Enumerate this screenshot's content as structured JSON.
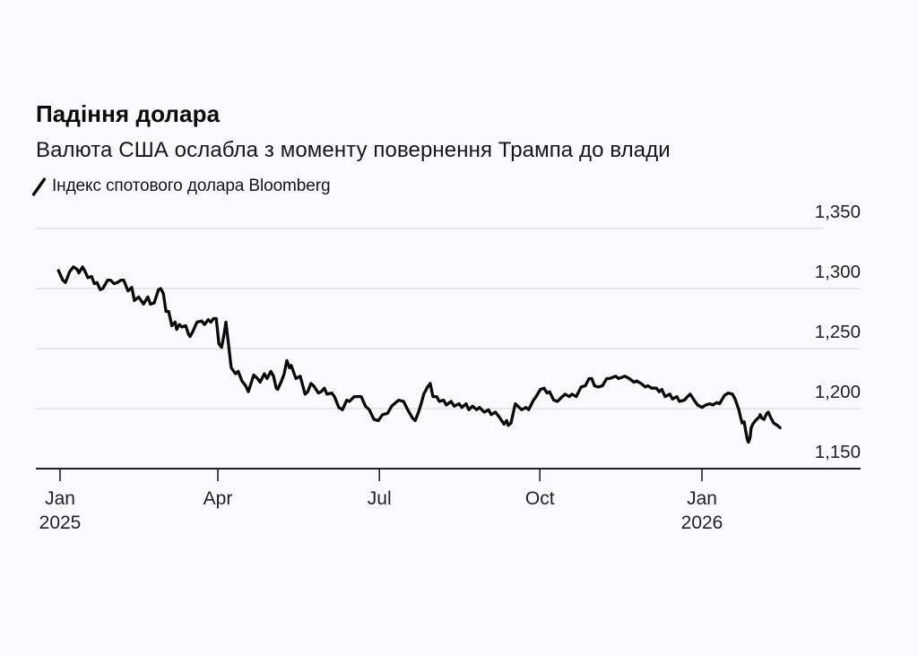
{
  "page": {
    "background": "#faf9fd"
  },
  "header": {
    "title": "Падіння долара",
    "subtitle": "Валюта США ослабла з моменту повернення Трампа до влади"
  },
  "legend": {
    "label": "Індекс спотового долара Bloomberg",
    "swatch_icon": "line-slash-icon",
    "swatch_color": "#0a0a0b"
  },
  "chart_data": {
    "type": "line",
    "title": "Падіння долара",
    "subtitle": "Валюта США ослабла з моменту повернення Трампа до влади",
    "grid": "horizontal",
    "legend_position": "top-left",
    "line_color": "#0a0a0b",
    "grid_color": "#dddce1",
    "axis_color": "#232127",
    "label_color": "#232127",
    "ylim": [
      1150,
      1350
    ],
    "xlim_months": [
      -0.45,
      14.97
    ],
    "x_unit": "months since Jan 2025",
    "y_ticks": [
      {
        "value": 1350,
        "label": "1,350"
      },
      {
        "value": 1300,
        "label": "1,300"
      },
      {
        "value": 1250,
        "label": "1,250"
      },
      {
        "value": 1200,
        "label": "1,200"
      },
      {
        "value": 1150,
        "label": "1,150"
      }
    ],
    "x_ticks": [
      {
        "t": 0,
        "label": "Jan",
        "sublabel": "2025"
      },
      {
        "t": 2.95,
        "label": "Apr",
        "sublabel": ""
      },
      {
        "t": 5.97,
        "label": "Jul",
        "sublabel": ""
      },
      {
        "t": 8.97,
        "label": "Oct",
        "sublabel": ""
      },
      {
        "t": 12.0,
        "label": "Jan",
        "sublabel": "2026"
      }
    ],
    "series": [
      {
        "name": "Індекс спотового долара Bloomberg",
        "color": "#0a0a0b",
        "points": [
          [
            -0.03,
            1315
          ],
          [
            0.05,
            1307
          ],
          [
            0.1,
            1305
          ],
          [
            0.18,
            1314
          ],
          [
            0.25,
            1318
          ],
          [
            0.32,
            1316
          ],
          [
            0.35,
            1313
          ],
          [
            0.42,
            1318
          ],
          [
            0.47,
            1314
          ],
          [
            0.52,
            1309
          ],
          [
            0.59,
            1310
          ],
          [
            0.64,
            1304
          ],
          [
            0.69,
            1305
          ],
          [
            0.75,
            1299
          ],
          [
            0.8,
            1300
          ],
          [
            0.89,
            1307
          ],
          [
            0.94,
            1307
          ],
          [
            1.01,
            1304
          ],
          [
            1.07,
            1305
          ],
          [
            1.14,
            1307
          ],
          [
            1.19,
            1307
          ],
          [
            1.27,
            1298
          ],
          [
            1.34,
            1301
          ],
          [
            1.39,
            1290
          ],
          [
            1.47,
            1293
          ],
          [
            1.56,
            1287
          ],
          [
            1.64,
            1293
          ],
          [
            1.69,
            1287
          ],
          [
            1.76,
            1288
          ],
          [
            1.84,
            1299
          ],
          [
            1.88,
            1300
          ],
          [
            1.93,
            1296
          ],
          [
            1.98,
            1281
          ],
          [
            2.03,
            1281
          ],
          [
            2.09,
            1269
          ],
          [
            2.15,
            1272
          ],
          [
            2.18,
            1266
          ],
          [
            2.23,
            1270
          ],
          [
            2.28,
            1268
          ],
          [
            2.35,
            1269
          ],
          [
            2.4,
            1262
          ],
          [
            2.43,
            1260
          ],
          [
            2.48,
            1264
          ],
          [
            2.56,
            1272
          ],
          [
            2.65,
            1273
          ],
          [
            2.7,
            1270
          ],
          [
            2.77,
            1274
          ],
          [
            2.82,
            1272
          ],
          [
            2.87,
            1275
          ],
          [
            2.92,
            1275
          ],
          [
            2.97,
            1254
          ],
          [
            3.02,
            1251
          ],
          [
            3.07,
            1263
          ],
          [
            3.1,
            1272
          ],
          [
            3.15,
            1253
          ],
          [
            3.2,
            1234
          ],
          [
            3.28,
            1229
          ],
          [
            3.33,
            1231
          ],
          [
            3.4,
            1223
          ],
          [
            3.47,
            1219
          ],
          [
            3.52,
            1214
          ],
          [
            3.57,
            1221
          ],
          [
            3.62,
            1228
          ],
          [
            3.69,
            1225
          ],
          [
            3.74,
            1222
          ],
          [
            3.82,
            1229
          ],
          [
            3.87,
            1225
          ],
          [
            3.94,
            1231
          ],
          [
            3.99,
            1227
          ],
          [
            4.04,
            1217
          ],
          [
            4.07,
            1216
          ],
          [
            4.14,
            1223
          ],
          [
            4.19,
            1229
          ],
          [
            4.24,
            1240
          ],
          [
            4.29,
            1234
          ],
          [
            4.32,
            1236
          ],
          [
            4.41,
            1225
          ],
          [
            4.49,
            1227
          ],
          [
            4.58,
            1212
          ],
          [
            4.63,
            1214
          ],
          [
            4.69,
            1221
          ],
          [
            4.74,
            1219
          ],
          [
            4.83,
            1213
          ],
          [
            4.88,
            1214
          ],
          [
            4.94,
            1217
          ],
          [
            4.99,
            1212
          ],
          [
            5.08,
            1213
          ],
          [
            5.13,
            1210
          ],
          [
            5.21,
            1201
          ],
          [
            5.28,
            1199
          ],
          [
            5.36,
            1207
          ],
          [
            5.41,
            1206
          ],
          [
            5.5,
            1210
          ],
          [
            5.58,
            1210
          ],
          [
            5.63,
            1210
          ],
          [
            5.71,
            1202
          ],
          [
            5.78,
            1199
          ],
          [
            5.87,
            1191
          ],
          [
            5.95,
            1190
          ],
          [
            6.03,
            1195
          ],
          [
            6.12,
            1196
          ],
          [
            6.2,
            1202
          ],
          [
            6.25,
            1204
          ],
          [
            6.33,
            1207
          ],
          [
            6.42,
            1206
          ],
          [
            6.5,
            1199
          ],
          [
            6.59,
            1192
          ],
          [
            6.64,
            1190
          ],
          [
            6.7,
            1197
          ],
          [
            6.75,
            1204
          ],
          [
            6.8,
            1212
          ],
          [
            6.87,
            1218
          ],
          [
            6.92,
            1221
          ],
          [
            6.97,
            1210
          ],
          [
            7.04,
            1210
          ],
          [
            7.09,
            1206
          ],
          [
            7.17,
            1207
          ],
          [
            7.22,
            1203
          ],
          [
            7.31,
            1206
          ],
          [
            7.37,
            1202
          ],
          [
            7.46,
            1204
          ],
          [
            7.51,
            1201
          ],
          [
            7.59,
            1204
          ],
          [
            7.64,
            1199
          ],
          [
            7.71,
            1202
          ],
          [
            7.79,
            1199
          ],
          [
            7.84,
            1201
          ],
          [
            7.93,
            1197
          ],
          [
            8.01,
            1199
          ],
          [
            8.06,
            1195
          ],
          [
            8.14,
            1197
          ],
          [
            8.21,
            1193
          ],
          [
            8.3,
            1187
          ],
          [
            8.35,
            1190
          ],
          [
            8.38,
            1186
          ],
          [
            8.43,
            1188
          ],
          [
            8.51,
            1204
          ],
          [
            8.56,
            1202
          ],
          [
            8.63,
            1199
          ],
          [
            8.71,
            1201
          ],
          [
            8.76,
            1199
          ],
          [
            8.85,
            1207
          ],
          [
            8.9,
            1210
          ],
          [
            8.98,
            1216
          ],
          [
            9.05,
            1217
          ],
          [
            9.1,
            1213
          ],
          [
            9.15,
            1214
          ],
          [
            9.23,
            1207
          ],
          [
            9.3,
            1206
          ],
          [
            9.39,
            1210
          ],
          [
            9.44,
            1212
          ],
          [
            9.52,
            1210
          ],
          [
            9.57,
            1212
          ],
          [
            9.65,
            1210
          ],
          [
            9.74,
            1218
          ],
          [
            9.82,
            1219
          ],
          [
            9.89,
            1225
          ],
          [
            9.94,
            1225
          ],
          [
            9.99,
            1219
          ],
          [
            10.06,
            1218
          ],
          [
            10.14,
            1219
          ],
          [
            10.22,
            1225
          ],
          [
            10.27,
            1225
          ],
          [
            10.39,
            1227
          ],
          [
            10.44,
            1225
          ],
          [
            10.56,
            1227
          ],
          [
            10.64,
            1225
          ],
          [
            10.73,
            1222
          ],
          [
            10.78,
            1223
          ],
          [
            10.86,
            1221
          ],
          [
            10.94,
            1218
          ],
          [
            10.99,
            1219
          ],
          [
            11.06,
            1217
          ],
          [
            11.15,
            1217
          ],
          [
            11.2,
            1214
          ],
          [
            11.25,
            1216
          ],
          [
            11.31,
            1210
          ],
          [
            11.4,
            1212
          ],
          [
            11.45,
            1208
          ],
          [
            11.53,
            1210
          ],
          [
            11.58,
            1206
          ],
          [
            11.67,
            1207
          ],
          [
            11.73,
            1210
          ],
          [
            11.78,
            1212
          ],
          [
            11.87,
            1206
          ],
          [
            11.92,
            1203
          ],
          [
            12.0,
            1201
          ],
          [
            12.07,
            1203
          ],
          [
            12.15,
            1204
          ],
          [
            12.2,
            1203
          ],
          [
            12.28,
            1205
          ],
          [
            12.33,
            1204
          ],
          [
            12.42,
            1211
          ],
          [
            12.49,
            1213
          ],
          [
            12.57,
            1212
          ],
          [
            12.62,
            1208
          ],
          [
            12.65,
            1204
          ],
          [
            12.69,
            1199
          ],
          [
            12.72,
            1193
          ],
          [
            12.75,
            1188
          ],
          [
            12.79,
            1189
          ],
          [
            12.82,
            1181
          ],
          [
            12.85,
            1174
          ],
          [
            12.87,
            1172
          ],
          [
            12.9,
            1176
          ],
          [
            12.92,
            1184
          ],
          [
            12.95,
            1187
          ],
          [
            13.0,
            1190
          ],
          [
            13.07,
            1193
          ],
          [
            13.09,
            1195
          ],
          [
            13.12,
            1192
          ],
          [
            13.16,
            1191
          ],
          [
            13.21,
            1196
          ],
          [
            13.24,
            1197
          ],
          [
            13.29,
            1192
          ],
          [
            13.34,
            1188
          ],
          [
            13.41,
            1186
          ],
          [
            13.46,
            1184
          ]
        ]
      }
    ]
  }
}
